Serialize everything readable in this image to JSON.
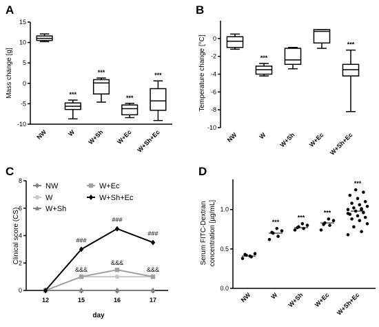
{
  "chart_data": [
    {
      "panel_label": "A",
      "type": "box",
      "ylabel": "Mass change [g]",
      "ylim": [
        -10,
        15
      ],
      "yticks": [
        -10,
        -5,
        0,
        5,
        10,
        15
      ],
      "categories": [
        "NW",
        "W",
        "W+Sh",
        "W+Ec",
        "W+Sh+Ec"
      ],
      "boxes": [
        {
          "min": 10.2,
          "q1": 10.5,
          "median": 11.0,
          "q3": 11.6,
          "max": 12.1
        },
        {
          "min": -8.7,
          "q1": -6.4,
          "median": -5.6,
          "q3": -4.8,
          "max": -4.1
        },
        {
          "min": -4.6,
          "q1": -2.6,
          "median": 0.1,
          "q3": 0.9,
          "max": 1.3
        },
        {
          "min": -8.4,
          "q1": -7.7,
          "median": -6.2,
          "q3": -5.3,
          "max": -4.9
        },
        {
          "min": -9.1,
          "q1": -6.6,
          "median": -4.3,
          "q3": -1.3,
          "max": 0.6
        }
      ],
      "annotations": [
        "",
        "***",
        "***",
        "***",
        "***"
      ]
    },
    {
      "panel_label": "B",
      "type": "box",
      "ylabel": "Temperature change [°C]",
      "ylim": [
        -10,
        2
      ],
      "yticks": [
        -10,
        -8,
        -6,
        -4,
        -2,
        0
      ],
      "categories": [
        "NW",
        "W",
        "W+Sh",
        "W+Ec",
        "W+Sh+Ec"
      ],
      "boxes": [
        {
          "min": -1.2,
          "q1": -1.0,
          "median": -0.3,
          "q3": 0.2,
          "max": 0.5
        },
        {
          "min": -4.2,
          "q1": -4.0,
          "median": -3.5,
          "q3": -3.1,
          "max": -2.8
        },
        {
          "min": -3.4,
          "q1": -2.9,
          "median": -2.4,
          "q3": -1.1,
          "max": -1.0
        },
        {
          "min": -1.1,
          "q1": -0.5,
          "median": 0.8,
          "q3": 1.0,
          "max": 1.0
        },
        {
          "min": -8.2,
          "q1": -4.2,
          "median": -3.5,
          "q3": -2.9,
          "max": -1.3
        }
      ],
      "annotations": [
        "",
        "***",
        "",
        "",
        "***"
      ]
    },
    {
      "panel_label": "C",
      "type": "line",
      "xlabel": "day",
      "ylabel": "Clinical score (CS)",
      "ylim": [
        0,
        8
      ],
      "yticks": [
        0,
        2,
        4,
        6,
        8
      ],
      "x": [
        "12",
        "15",
        "16",
        "17"
      ],
      "series": [
        {
          "name": "NW",
          "values": [
            0,
            0,
            0,
            0
          ],
          "color": "#808080",
          "marker": "diamond"
        },
        {
          "name": "W",
          "values": [
            0,
            1.0,
            1.0,
            1.0
          ],
          "color": "#c8c8c8",
          "marker": "circle"
        },
        {
          "name": "W+Sh",
          "values": [
            0,
            0,
            0,
            0
          ],
          "color": "#808080",
          "marker": "triangle"
        },
        {
          "name": "W+Ec",
          "values": [
            0,
            1.0,
            1.5,
            1.0
          ],
          "color": "#a0a0a0",
          "marker": "square"
        },
        {
          "name": "W+Sh+Ec",
          "values": [
            0,
            3.0,
            4.5,
            3.5
          ],
          "color": "#000000",
          "marker": "diamond"
        }
      ],
      "annotations": {
        "upper": [
          "",
          "###",
          "###",
          "###"
        ],
        "lower": [
          "",
          "&&&",
          "&&&",
          "&&&"
        ]
      }
    },
    {
      "panel_label": "D",
      "type": "scatter",
      "ylabel": "Serum FITC-Dextran concentration [µg/mL]",
      "ylabel_lines": [
        "Serum FITC-Dextran",
        "concentration [µg/mL]"
      ],
      "ylim": [
        0,
        1.4
      ],
      "yticks": [
        0.0,
        0.5,
        1.0
      ],
      "categories": [
        "NW",
        "W",
        "W+Sh",
        "W+Ec",
        "W+Sh+Ec"
      ],
      "points": [
        [
          0.38,
          0.4,
          0.42,
          0.44,
          0.41,
          0.43
        ],
        [
          0.62,
          0.66,
          0.7,
          0.73,
          0.76,
          0.71
        ],
        [
          0.74,
          0.76,
          0.78,
          0.8,
          0.82,
          0.77
        ],
        [
          0.74,
          0.8,
          0.83,
          0.86,
          0.88,
          0.81
        ],
        [
          0.68,
          0.72,
          0.78,
          0.82,
          0.86,
          0.88,
          0.9,
          0.92,
          0.94,
          0.96,
          0.98,
          1.0,
          1.01,
          1.02,
          1.04,
          1.06,
          1.08,
          1.1,
          1.14,
          1.18,
          1.22,
          1.25,
          0.95,
          1.0
        ]
      ],
      "medians": [
        0.41,
        0.7,
        0.77,
        0.83,
        0.98
      ],
      "annotations": [
        "",
        "***",
        "***",
        "***",
        "***"
      ]
    }
  ]
}
